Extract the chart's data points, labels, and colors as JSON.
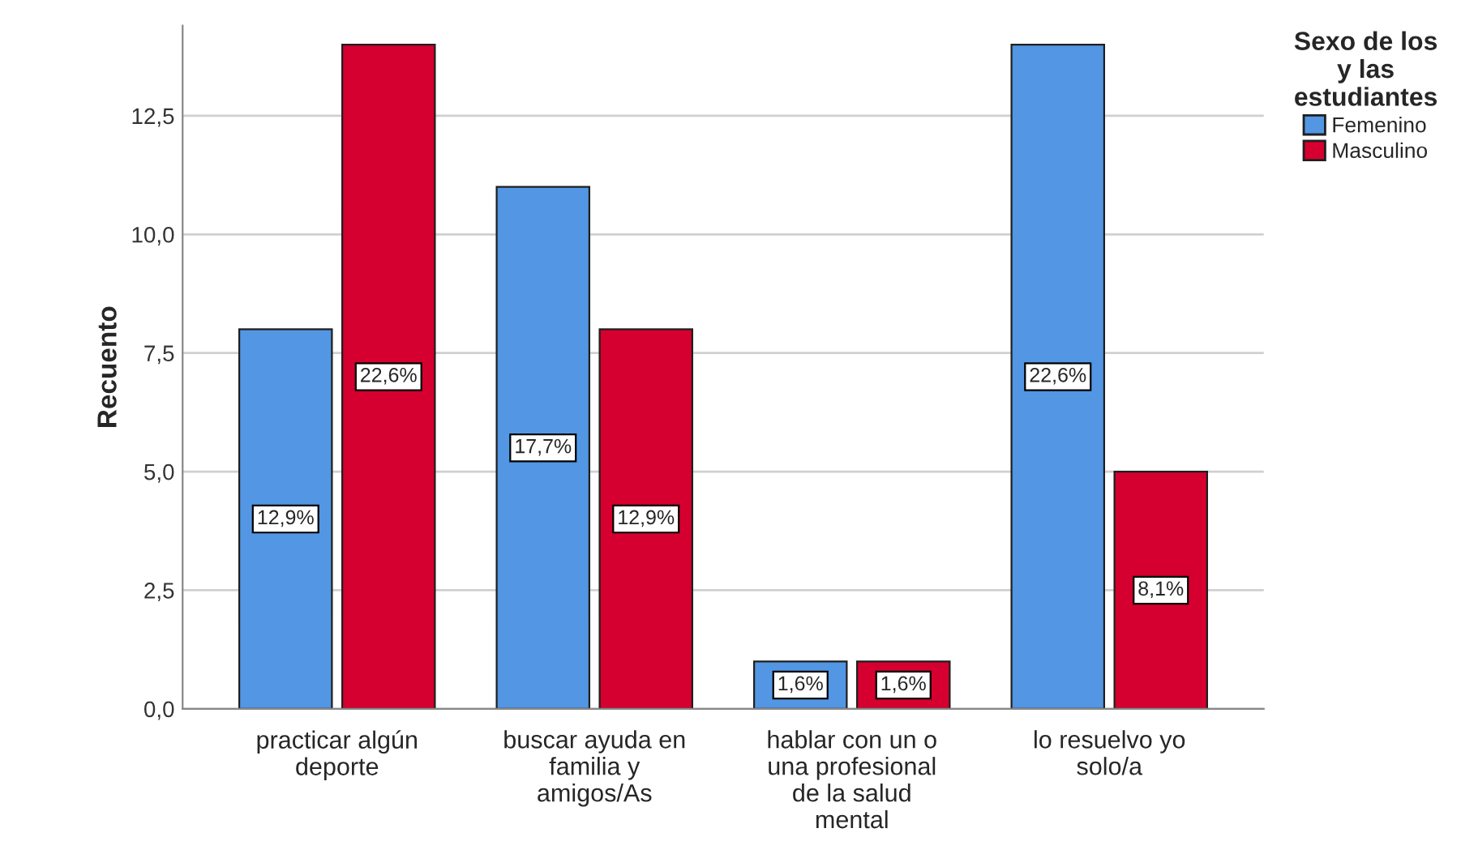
{
  "chart_data": {
    "type": "bar",
    "categories": [
      "practicar algún\ndeporte",
      "buscar ayuda en\nfamilia y\namigos/As",
      "hablar con un o\nuna profesional\nde la salud\nmental",
      "lo resuelvo yo\nsolo/a"
    ],
    "series": [
      {
        "name": "Femenino",
        "color": "#5396e3",
        "values": [
          8,
          11,
          1,
          14
        ]
      },
      {
        "name": "Masculino",
        "color": "#d5002f",
        "values": [
          14,
          8,
          1,
          5
        ]
      }
    ],
    "annotations": [
      {
        "text": "12,9%",
        "x": "practicar algún\ndeporte",
        "y": 4
      },
      {
        "text": "22,6%",
        "x": "practicar algún\ndeporte",
        "y": 7
      },
      {
        "text": "17,7%",
        "x": "buscar ayuda en\nfamilia y\namigos/As",
        "y": 5.5
      },
      {
        "text": "12,9%",
        "x": "buscar ayuda en\nfamilia y\namigos/As",
        "y": 4
      },
      {
        "text": "1,6%",
        "x": "hablar con un o\nuna profesional\nde la salud\nmental",
        "y": 0.5
      },
      {
        "text": "1,6%",
        "x": "hablar con un o\nuna profesional\nde la salud\nmental",
        "y": 0.5
      },
      {
        "text": "22,6%",
        "x": "lo resuelvo yo\nsolo/a",
        "y": 7
      },
      {
        "text": "8,1%",
        "x": "lo resuelvo yo\nsolo/a",
        "y": 2.5
      }
    ],
    "ylabel": "Recuento",
    "legend_title": "Sexo de los\ny las\nestudiantes",
    "ylim": [
      0,
      14.4
    ],
    "yticks": [
      {
        "value": 0,
        "label": "0,0"
      },
      {
        "value": 2.5,
        "label": "2,5"
      },
      {
        "value": 5,
        "label": "5,0"
      },
      {
        "value": 7.5,
        "label": "7,5"
      },
      {
        "value": 10,
        "label": "10,0"
      },
      {
        "value": 12.5,
        "label": "12,5"
      }
    ],
    "grid": "y",
    "legend": "right"
  }
}
